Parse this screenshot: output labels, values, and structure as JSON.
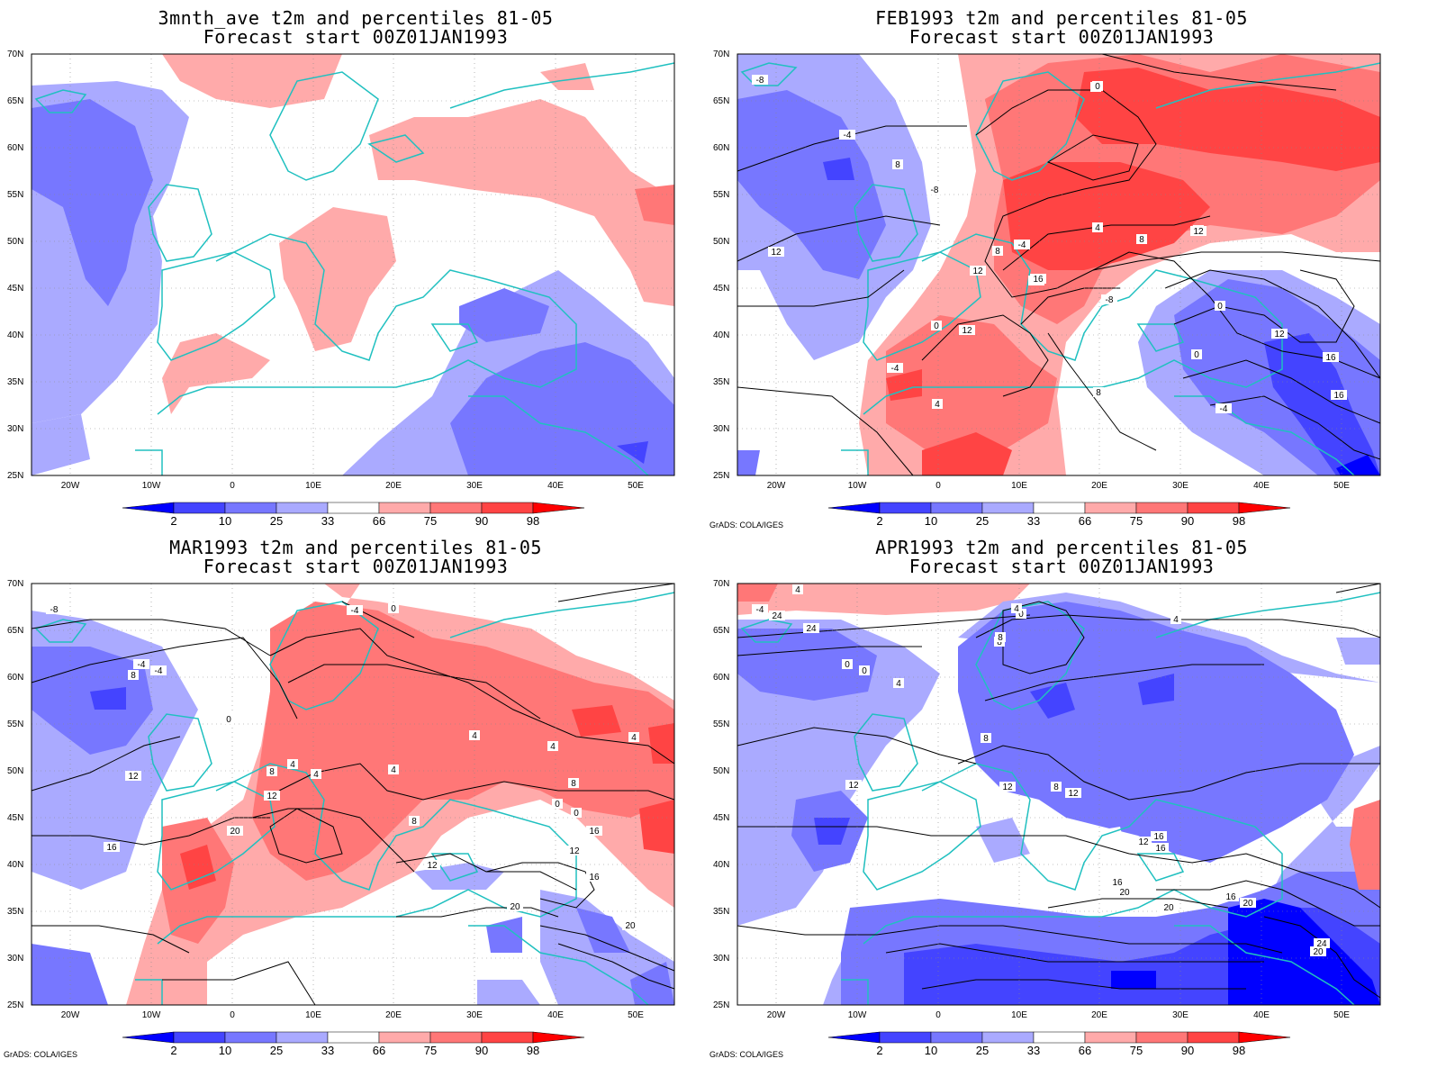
{
  "panels": [
    {
      "title_line1": "3mnth_ave t2m and percentiles 81-05",
      "title_line2": "Forecast start 00Z01JAN1993"
    },
    {
      "title_line1": "FEB1993 t2m and percentiles 81-05",
      "title_line2": "Forecast start 00Z01JAN1993"
    },
    {
      "title_line1": "MAR1993 t2m and percentiles 81-05",
      "title_line2": "Forecast start 00Z01JAN1993"
    },
    {
      "title_line1": "APR1993 t2m and percentiles 81-05",
      "title_line2": "Forecast start 00Z01JAN1993"
    }
  ],
  "lat_labels": [
    "70N",
    "65N",
    "60N",
    "55N",
    "50N",
    "45N",
    "40N",
    "35N",
    "30N",
    "25N"
  ],
  "lon_labels": [
    "20W",
    "10W",
    "0",
    "10E",
    "20E",
    "30E",
    "40E",
    "50E"
  ],
  "colorbar_labels": [
    "2",
    "10",
    "25",
    "33",
    "66",
    "75",
    "90",
    "98"
  ],
  "colorbar_colors": [
    "#0000ff",
    "#4444ff",
    "#7777ff",
    "#aaaaff",
    "#ffffff",
    "#ffaaaa",
    "#ff7777",
    "#ff4444",
    "#ff0000"
  ],
  "coast_color": "#20c0c0",
  "credit": "GrADS: COLA/IGES",
  "contour_labels": {
    "feb": [
      "-8",
      "-4",
      "-8",
      "-4",
      "-8",
      "0",
      "4",
      "8",
      "12",
      "0",
      "4",
      "8",
      "12",
      "12",
      "16",
      "12",
      "0",
      "-4",
      "4",
      "8",
      "4",
      "12",
      "8",
      "0",
      "12",
      "16",
      "16",
      "-4"
    ],
    "mar": [
      "-8",
      "-4",
      "0",
      "4",
      "8",
      "12",
      "16",
      "20",
      "-4",
      "0",
      "4",
      "8",
      "12",
      "4",
      "0",
      "4",
      "8",
      "12",
      "16",
      "20",
      "-4",
      "4",
      "4",
      "8",
      "12",
      "0",
      "16",
      "20"
    ],
    "apr": [
      "-4",
      "0",
      "4",
      "8",
      "12",
      "16",
      "20",
      "24",
      "0",
      "4",
      "8",
      "12",
      "16",
      "20",
      "24",
      "0",
      "4",
      "8",
      "12",
      "16",
      "20",
      "24",
      "4",
      "8",
      "12",
      "16",
      "20"
    ]
  }
}
